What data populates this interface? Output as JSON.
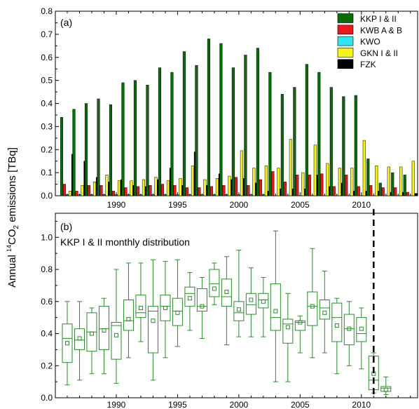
{
  "ylabel": {
    "pre": "Annual ",
    "sup": "14",
    "mid": "CO",
    "sub": "2",
    "post": " emissions [TBq]"
  },
  "colors": {
    "KKP": "#0a6b0a",
    "KWB": "#e8181c",
    "KWO": "#2fe6ef",
    "GKN": "#f4f41c",
    "FZK": "#000000",
    "box": "#2a8a2a",
    "vline": "#000000"
  },
  "chart_data": [
    {
      "type": "bar",
      "panel_label": "(a)",
      "x": [
        1986,
        1987,
        1988,
        1989,
        1990,
        1991,
        1992,
        1993,
        1994,
        1995,
        1996,
        1997,
        1998,
        1999,
        2000,
        2001,
        2002,
        2003,
        2004,
        2005,
        2006,
        2007,
        2008,
        2009,
        2010,
        2011,
        2012,
        2013,
        2014
      ],
      "xticks": [
        "1990",
        "1995",
        "2000",
        "2005",
        "2010"
      ],
      "ylim": [
        0,
        0.8
      ],
      "yticks": [
        "0.0",
        "0.1",
        "0.2",
        "0.3",
        "0.4",
        "0.5",
        "0.6",
        "0.7",
        "0.8"
      ],
      "series": [
        {
          "name": "KKP I &  II",
          "key": "KKP",
          "values": [
            0.34,
            0.375,
            0.4,
            0.42,
            0.395,
            0.49,
            0.5,
            0.48,
            0.555,
            0.535,
            0.625,
            0.565,
            0.68,
            0.66,
            0.555,
            0.61,
            0.64,
            0.535,
            0.44,
            0.47,
            0.57,
            0.535,
            0.47,
            0.43,
            0.435,
            0.16,
            0.055,
            0.1,
            0.09
          ]
        },
        {
          "name": "KWB A &  B",
          "key": "KWB",
          "values": [
            0.05,
            0.02,
            0.045,
            0.045,
            0.02,
            0.035,
            0.04,
            0.045,
            0.05,
            0.045,
            0.035,
            0.035,
            0.04,
            0.045,
            0.08,
            0.045,
            0.07,
            0.105,
            0.06,
            0.09,
            0.09,
            0.095,
            0.04,
            0.09,
            0.04,
            0.045,
            0.035,
            0.035,
            0.015
          ]
        },
        {
          "name": "KWO",
          "key": "KWO",
          "values": [
            0.005,
            0.005,
            0.005,
            0.005,
            0.005,
            0.005,
            0.005,
            0.005,
            0.005,
            0.005,
            0.005,
            0.005,
            0.005,
            0.005,
            0.005,
            0.005,
            0.005,
            0.0,
            0.0,
            0.0,
            0.0,
            0.0,
            0.0,
            0.0,
            0.0,
            0.0,
            0.0,
            0.0,
            0.0
          ]
        },
        {
          "name": "GKN I &  II",
          "key": "GKN",
          "values": [
            0.02,
            0.045,
            0.06,
            0.09,
            0.065,
            0.065,
            0.07,
            0.08,
            0.065,
            0.075,
            0.13,
            0.07,
            0.075,
            0.085,
            0.195,
            0.12,
            0.13,
            0.12,
            0.245,
            0.1,
            0.22,
            0.14,
            0.12,
            0.12,
            0.24,
            0.13,
            0.125,
            0.125,
            0.15
          ]
        },
        {
          "name": "FZK",
          "key": "FZK",
          "values": [
            0.18,
            0.15,
            0.08,
            0.06,
            0.07,
            0.045,
            0.04,
            0.07,
            0.12,
            0.045,
            0.19,
            0.045,
            0.095,
            0.07,
            0.075,
            0.055,
            0.02,
            0.03,
            0.03,
            0.03,
            0.09,
            0.04,
            0.055,
            0.02,
            0.02,
            0.02,
            0.015,
            0.015,
            0.01
          ]
        }
      ]
    },
    {
      "type": "box",
      "panel_label": "(b)",
      "annotation": "KKP I & II monthly distribution",
      "ylim": [
        0,
        1.15
      ],
      "yticks": [
        "0.0",
        "0.2",
        "0.4",
        "0.6",
        "0.8",
        "1.0"
      ],
      "xticks": [
        "1990",
        "1995",
        "2000",
        "2005",
        "2010"
      ],
      "vline_x": 2011,
      "series": [
        {
          "key": "box",
          "boxes": [
            {
              "x": 1986,
              "min": 0.08,
              "q1": 0.22,
              "median": 0.37,
              "q3": 0.46,
              "max": 0.6,
              "mean": 0.34
            },
            {
              "x": 1987,
              "min": 0.11,
              "q1": 0.3,
              "median": 0.36,
              "q3": 0.43,
              "max": 0.6,
              "mean": 0.37
            },
            {
              "x": 1988,
              "min": 0.15,
              "q1": 0.29,
              "median": 0.41,
              "q3": 0.53,
              "max": 0.56,
              "mean": 0.4
            },
            {
              "x": 1989,
              "min": 0.15,
              "q1": 0.3,
              "median": 0.43,
              "q3": 0.57,
              "max": 0.62,
              "mean": 0.42
            },
            {
              "x": 1990,
              "min": 0.09,
              "q1": 0.24,
              "median": 0.45,
              "q3": 0.47,
              "max": 0.8,
              "mean": 0.39
            },
            {
              "x": 1991,
              "min": 0.25,
              "q1": 0.42,
              "median": 0.48,
              "q3": 0.61,
              "max": 0.84,
              "mean": 0.49
            },
            {
              "x": 1992,
              "min": 0.35,
              "q1": 0.5,
              "median": 0.53,
              "q3": 0.64,
              "max": 0.84,
              "mean": 0.56
            },
            {
              "x": 1993,
              "min": 0.11,
              "q1": 0.28,
              "median": 0.54,
              "q3": 0.57,
              "max": 0.86,
              "mean": 0.48
            },
            {
              "x": 1994,
              "min": 0.25,
              "q1": 0.48,
              "median": 0.57,
              "q3": 0.64,
              "max": 0.85,
              "mean": 0.56
            },
            {
              "x": 1995,
              "min": 0.32,
              "q1": 0.45,
              "median": 0.54,
              "q3": 0.62,
              "max": 0.86,
              "mean": 0.53
            },
            {
              "x": 1996,
              "min": 0.42,
              "q1": 0.57,
              "median": 0.65,
              "q3": 0.69,
              "max": 0.78,
              "mean": 0.62
            },
            {
              "x": 1997,
              "min": 0.37,
              "q1": 0.54,
              "median": 0.57,
              "q3": 0.68,
              "max": 0.75,
              "mean": 0.57
            },
            {
              "x": 1998,
              "min": 0.58,
              "q1": 0.63,
              "median": 0.71,
              "q3": 0.8,
              "max": 0.84,
              "mean": 0.68
            },
            {
              "x": 1999,
              "min": 0.33,
              "q1": 0.57,
              "median": 0.63,
              "q3": 0.74,
              "max": 0.88,
              "mean": 0.66
            },
            {
              "x": 2000,
              "min": 0.38,
              "q1": 0.48,
              "median": 0.53,
              "q3": 0.6,
              "max": 0.92,
              "mean": 0.55
            },
            {
              "x": 2001,
              "min": 0.38,
              "q1": 0.52,
              "median": 0.58,
              "q3": 0.65,
              "max": 0.81,
              "mean": 0.61
            },
            {
              "x": 2002,
              "min": 0.38,
              "q1": 0.56,
              "median": 0.61,
              "q3": 0.65,
              "max": 0.75,
              "mean": 0.6
            },
            {
              "x": 2003,
              "min": 0.1,
              "q1": 0.42,
              "median": 0.5,
              "q3": 0.71,
              "max": 1.04,
              "mean": 0.54
            },
            {
              "x": 2004,
              "min": 0.1,
              "q1": 0.34,
              "median": 0.46,
              "q3": 0.49,
              "max": 0.65,
              "mean": 0.44
            },
            {
              "x": 2005,
              "min": 0.28,
              "q1": 0.42,
              "median": 0.47,
              "q3": 0.48,
              "max": 0.51,
              "mean": 0.47
            },
            {
              "x": 2006,
              "min": 0.25,
              "q1": 0.45,
              "median": 0.57,
              "q3": 0.66,
              "max": 0.93,
              "mean": 0.57
            },
            {
              "x": 2007,
              "min": 0.28,
              "q1": 0.49,
              "median": 0.56,
              "q3": 0.61,
              "max": 0.79,
              "mean": 0.53
            },
            {
              "x": 2008,
              "min": 0.15,
              "q1": 0.35,
              "median": 0.5,
              "q3": 0.59,
              "max": 0.62,
              "mean": 0.45
            },
            {
              "x": 2009,
              "min": 0.2,
              "q1": 0.33,
              "median": 0.43,
              "q3": 0.52,
              "max": 0.6,
              "mean": 0.43
            },
            {
              "x": 2010,
              "min": 0.18,
              "q1": 0.35,
              "median": 0.4,
              "q3": 0.5,
              "max": 0.56,
              "mean": 0.43
            },
            {
              "x": 2011,
              "min": 0.03,
              "q1": 0.05,
              "median": 0.11,
              "q3": 0.26,
              "max": 0.28,
              "mean": 0.15
            },
            {
              "x": 2012,
              "min": 0.02,
              "q1": 0.04,
              "median": 0.06,
              "q3": 0.07,
              "max": 0.13,
              "mean": 0.05
            }
          ]
        }
      ]
    }
  ]
}
